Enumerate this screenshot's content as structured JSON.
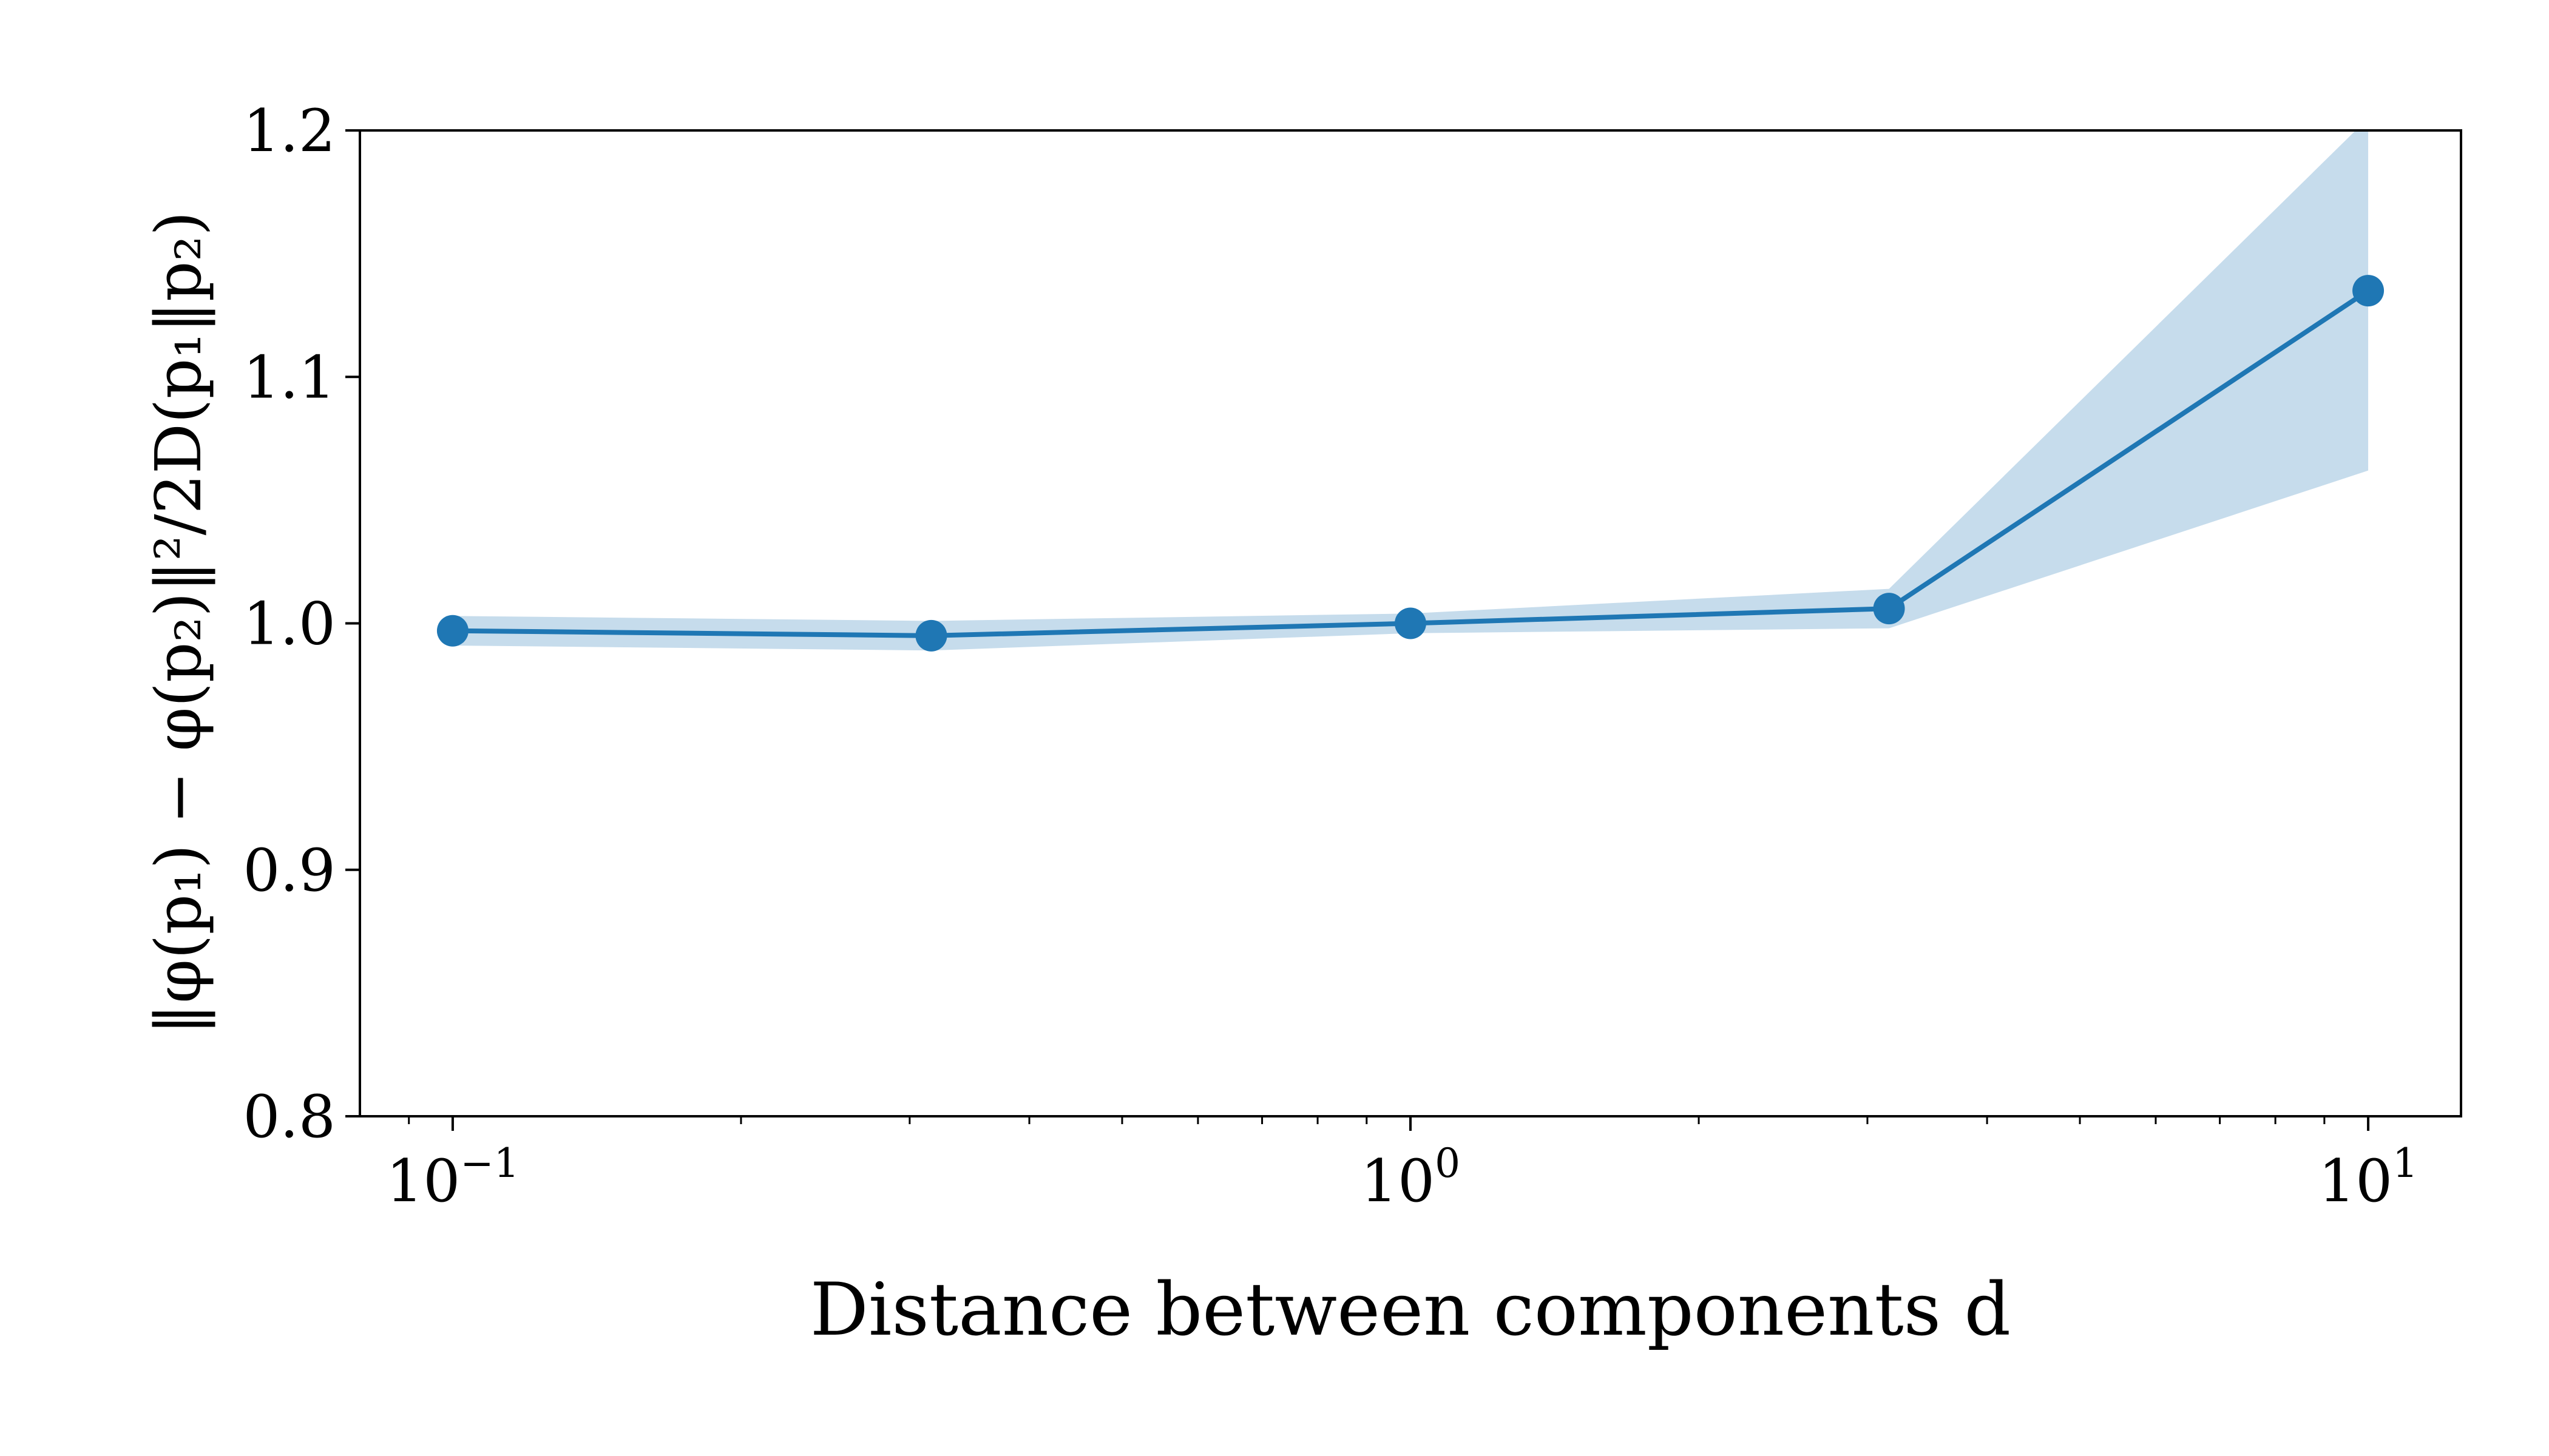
{
  "chart_data": {
    "type": "line",
    "xlabel": "Distance between components d",
    "ylabel": "‖φ(p₁) − φ(p₂)‖²/2D(p₁‖p₂)",
    "xscale": "log",
    "xlim": [
      0.08,
      12.5
    ],
    "ylim": [
      0.8,
      1.2
    ],
    "x_ticks": [
      {
        "value": 0.1,
        "base": "10",
        "exp": "−1"
      },
      {
        "value": 1,
        "base": "10",
        "exp": "0"
      },
      {
        "value": 10,
        "base": "10",
        "exp": "1"
      }
    ],
    "y_ticks": [
      {
        "value": 0.8,
        "label": "0.8"
      },
      {
        "value": 0.9,
        "label": "0.9"
      },
      {
        "value": 1.0,
        "label": "1.0"
      },
      {
        "value": 1.1,
        "label": "1.1"
      },
      {
        "value": 1.2,
        "label": "1.2"
      }
    ],
    "grid": false,
    "series": [
      {
        "x": [
          0.1,
          0.316,
          1.0,
          3.16,
          10.0
        ],
        "y": [
          0.997,
          0.995,
          1.0,
          1.006,
          1.135
        ],
        "lower": [
          0.991,
          0.989,
          0.996,
          0.998,
          1.062
        ],
        "upper": [
          1.003,
          1.001,
          1.004,
          1.014,
          1.205
        ],
        "color": "#1f77b4",
        "band_color": "#c6dcec"
      }
    ]
  }
}
